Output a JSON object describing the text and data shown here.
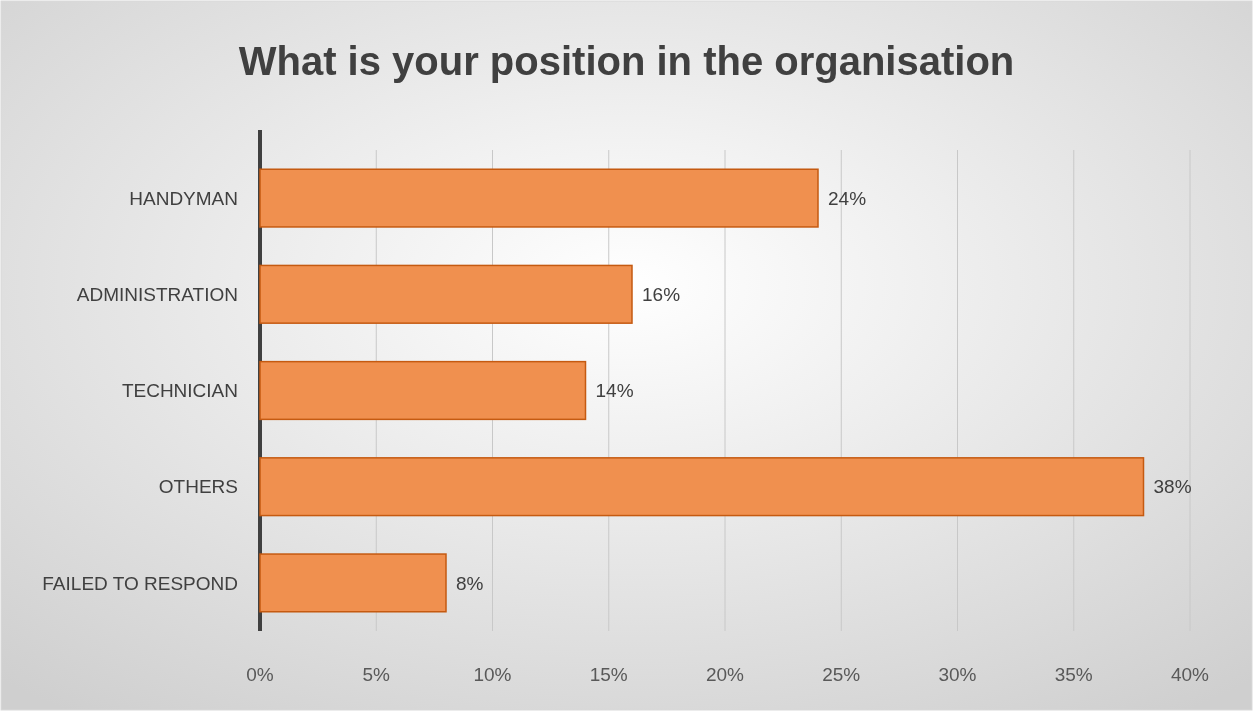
{
  "chart_data": {
    "type": "bar",
    "orientation": "horizontal",
    "title": "What is your position in the organisation",
    "categories": [
      "HANDYMAN",
      "ADMINISTRATION",
      "TECHNICIAN",
      "OTHERS",
      "FAILED TO RESPOND"
    ],
    "values": [
      24,
      16,
      14,
      38,
      8
    ],
    "color": "#f0904f",
    "xlim": [
      0,
      40
    ],
    "xticks": [
      {
        "value": 0,
        "label": "0%"
      },
      {
        "value": 5,
        "label": "5%"
      },
      {
        "value": 10,
        "label": "10%"
      },
      {
        "value": 15,
        "label": "15%"
      },
      {
        "value": 20,
        "label": "20%"
      },
      {
        "value": 25,
        "label": "25%"
      },
      {
        "value": 30,
        "label": "30%"
      },
      {
        "value": 35,
        "label": "35%"
      },
      {
        "value": 40,
        "label": "40%"
      }
    ],
    "value_labels": [
      "24%",
      "16%",
      "14%",
      "38%",
      "8%"
    ],
    "grid": "x"
  }
}
